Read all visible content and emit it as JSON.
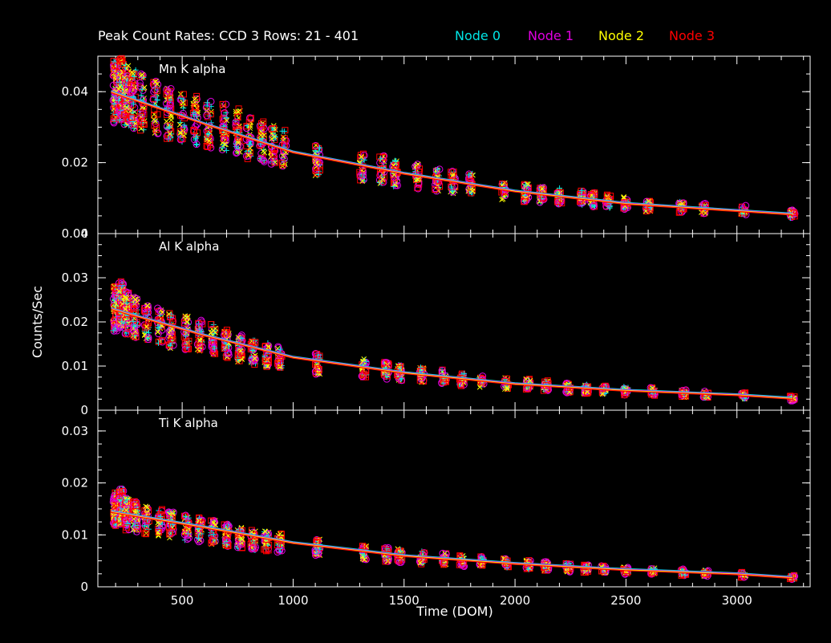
{
  "chart_data": {
    "type": "scatter",
    "title": "Peak Count Rates: CCD 3 Rows: 21 - 401",
    "xlabel": "Time (DOM)",
    "ylabel": "Counts/Sec",
    "xlim": [
      120,
      3330
    ],
    "x_ticks": [
      500,
      1000,
      1500,
      2000,
      2500,
      3000
    ],
    "series": [
      {
        "name": "Node 0",
        "color": "#00e5e5",
        "marker": "plus"
      },
      {
        "name": "Node 1",
        "color": "#e000e0",
        "marker": "circle"
      },
      {
        "name": "Node 2",
        "color": "#ffff00",
        "marker": "cross"
      },
      {
        "name": "Node 3",
        "color": "#ff0000",
        "marker": "square"
      }
    ],
    "panels": [
      {
        "title": "Mn K alpha",
        "ylim": [
          0,
          0.05
        ],
        "y_ticks": [
          0,
          0.02,
          0.04
        ],
        "y_tick_labels": [
          "0",
          "0.02",
          "0.04"
        ],
        "trend": [
          [
            180,
            0.04
          ],
          [
            600,
            0.031
          ],
          [
            1000,
            0.023
          ],
          [
            1500,
            0.017
          ],
          [
            2000,
            0.012
          ],
          [
            2500,
            0.0085
          ],
          [
            3000,
            0.0065
          ],
          [
            3250,
            0.0055
          ]
        ],
        "clusters": [
          {
            "x": 200,
            "y": 0.04,
            "n": 22
          },
          {
            "x": 225,
            "y": 0.041,
            "n": 22
          },
          {
            "x": 250,
            "y": 0.039,
            "n": 22
          },
          {
            "x": 280,
            "y": 0.038,
            "n": 16
          },
          {
            "x": 320,
            "y": 0.037,
            "n": 12
          },
          {
            "x": 380,
            "y": 0.036,
            "n": 10
          },
          {
            "x": 440,
            "y": 0.034,
            "n": 14
          },
          {
            "x": 500,
            "y": 0.033,
            "n": 10
          },
          {
            "x": 560,
            "y": 0.032,
            "n": 10
          },
          {
            "x": 620,
            "y": 0.031,
            "n": 10
          },
          {
            "x": 690,
            "y": 0.03,
            "n": 12
          },
          {
            "x": 750,
            "y": 0.029,
            "n": 12
          },
          {
            "x": 800,
            "y": 0.027,
            "n": 10
          },
          {
            "x": 860,
            "y": 0.026,
            "n": 12
          },
          {
            "x": 910,
            "y": 0.025,
            "n": 10
          },
          {
            "x": 960,
            "y": 0.024,
            "n": 8
          },
          {
            "x": 1110,
            "y": 0.021,
            "n": 10
          },
          {
            "x": 1310,
            "y": 0.019,
            "n": 8
          },
          {
            "x": 1400,
            "y": 0.018,
            "n": 10
          },
          {
            "x": 1460,
            "y": 0.017,
            "n": 10
          },
          {
            "x": 1560,
            "y": 0.016,
            "n": 8
          },
          {
            "x": 1650,
            "y": 0.015,
            "n": 8
          },
          {
            "x": 1720,
            "y": 0.0145,
            "n": 8
          },
          {
            "x": 1800,
            "y": 0.014,
            "n": 8
          },
          {
            "x": 1950,
            "y": 0.012,
            "n": 6
          },
          {
            "x": 2050,
            "y": 0.0115,
            "n": 10
          },
          {
            "x": 2120,
            "y": 0.011,
            "n": 10
          },
          {
            "x": 2200,
            "y": 0.0105,
            "n": 8
          },
          {
            "x": 2300,
            "y": 0.01,
            "n": 10
          },
          {
            "x": 2350,
            "y": 0.0095,
            "n": 10
          },
          {
            "x": 2420,
            "y": 0.009,
            "n": 8
          },
          {
            "x": 2500,
            "y": 0.0085,
            "n": 8
          },
          {
            "x": 2600,
            "y": 0.008,
            "n": 8
          },
          {
            "x": 2750,
            "y": 0.0075,
            "n": 8
          },
          {
            "x": 2850,
            "y": 0.007,
            "n": 6
          },
          {
            "x": 3030,
            "y": 0.0065,
            "n": 6
          },
          {
            "x": 3250,
            "y": 0.0055,
            "n": 8
          }
        ]
      },
      {
        "title": "Al K alpha",
        "ylim": [
          0,
          0.04
        ],
        "y_ticks": [
          0,
          0.01,
          0.02,
          0.03,
          0.04
        ],
        "y_tick_labels": [
          "0",
          "0.01",
          "0.02",
          "0.03",
          "0.04"
        ],
        "trend": [
          [
            180,
            0.023
          ],
          [
            600,
            0.017
          ],
          [
            1000,
            0.012
          ],
          [
            1500,
            0.0085
          ],
          [
            2000,
            0.006
          ],
          [
            2500,
            0.0045
          ],
          [
            3000,
            0.0035
          ],
          [
            3250,
            0.0027
          ]
        ],
        "clusters": [
          {
            "x": 200,
            "y": 0.023,
            "n": 22
          },
          {
            "x": 225,
            "y": 0.024,
            "n": 22
          },
          {
            "x": 250,
            "y": 0.022,
            "n": 20
          },
          {
            "x": 290,
            "y": 0.021,
            "n": 14
          },
          {
            "x": 340,
            "y": 0.02,
            "n": 10
          },
          {
            "x": 400,
            "y": 0.019,
            "n": 10
          },
          {
            "x": 450,
            "y": 0.018,
            "n": 12
          },
          {
            "x": 520,
            "y": 0.0175,
            "n": 10
          },
          {
            "x": 580,
            "y": 0.017,
            "n": 10
          },
          {
            "x": 640,
            "y": 0.016,
            "n": 10
          },
          {
            "x": 700,
            "y": 0.015,
            "n": 12
          },
          {
            "x": 760,
            "y": 0.014,
            "n": 12
          },
          {
            "x": 820,
            "y": 0.013,
            "n": 10
          },
          {
            "x": 880,
            "y": 0.0125,
            "n": 10
          },
          {
            "x": 940,
            "y": 0.012,
            "n": 8
          },
          {
            "x": 1110,
            "y": 0.0105,
            "n": 10
          },
          {
            "x": 1320,
            "y": 0.0095,
            "n": 8
          },
          {
            "x": 1420,
            "y": 0.009,
            "n": 10
          },
          {
            "x": 1480,
            "y": 0.0085,
            "n": 10
          },
          {
            "x": 1580,
            "y": 0.008,
            "n": 8
          },
          {
            "x": 1680,
            "y": 0.0075,
            "n": 8
          },
          {
            "x": 1760,
            "y": 0.007,
            "n": 8
          },
          {
            "x": 1850,
            "y": 0.0065,
            "n": 6
          },
          {
            "x": 1960,
            "y": 0.006,
            "n": 6
          },
          {
            "x": 2060,
            "y": 0.0058,
            "n": 10
          },
          {
            "x": 2140,
            "y": 0.0055,
            "n": 10
          },
          {
            "x": 2240,
            "y": 0.005,
            "n": 8
          },
          {
            "x": 2320,
            "y": 0.0048,
            "n": 10
          },
          {
            "x": 2400,
            "y": 0.0046,
            "n": 8
          },
          {
            "x": 2500,
            "y": 0.0044,
            "n": 8
          },
          {
            "x": 2620,
            "y": 0.0042,
            "n": 8
          },
          {
            "x": 2760,
            "y": 0.0038,
            "n": 8
          },
          {
            "x": 2860,
            "y": 0.0036,
            "n": 6
          },
          {
            "x": 3030,
            "y": 0.0033,
            "n": 6
          },
          {
            "x": 3250,
            "y": 0.0027,
            "n": 8
          }
        ]
      },
      {
        "title": "Ti K alpha",
        "ylim": [
          0,
          0.034
        ],
        "y_ticks": [
          0,
          0.01,
          0.02,
          0.03
        ],
        "y_tick_labels": [
          "0",
          "0.01",
          "0.02",
          "0.03"
        ],
        "trend": [
          [
            180,
            0.0145
          ],
          [
            600,
            0.0115
          ],
          [
            1000,
            0.0085
          ],
          [
            1500,
            0.006
          ],
          [
            2000,
            0.0045
          ],
          [
            2500,
            0.0033
          ],
          [
            3000,
            0.0025
          ],
          [
            3250,
            0.0018
          ]
        ],
        "clusters": [
          {
            "x": 200,
            "y": 0.015,
            "n": 22
          },
          {
            "x": 225,
            "y": 0.0155,
            "n": 22
          },
          {
            "x": 250,
            "y": 0.014,
            "n": 20
          },
          {
            "x": 290,
            "y": 0.0135,
            "n": 14
          },
          {
            "x": 340,
            "y": 0.013,
            "n": 10
          },
          {
            "x": 400,
            "y": 0.0125,
            "n": 10
          },
          {
            "x": 450,
            "y": 0.012,
            "n": 12
          },
          {
            "x": 520,
            "y": 0.0115,
            "n": 10
          },
          {
            "x": 580,
            "y": 0.011,
            "n": 10
          },
          {
            "x": 640,
            "y": 0.0105,
            "n": 10
          },
          {
            "x": 700,
            "y": 0.01,
            "n": 12
          },
          {
            "x": 760,
            "y": 0.0095,
            "n": 12
          },
          {
            "x": 820,
            "y": 0.009,
            "n": 10
          },
          {
            "x": 880,
            "y": 0.0088,
            "n": 10
          },
          {
            "x": 940,
            "y": 0.0085,
            "n": 8
          },
          {
            "x": 1110,
            "y": 0.0075,
            "n": 10
          },
          {
            "x": 1320,
            "y": 0.0065,
            "n": 8
          },
          {
            "x": 1420,
            "y": 0.0062,
            "n": 10
          },
          {
            "x": 1480,
            "y": 0.006,
            "n": 10
          },
          {
            "x": 1580,
            "y": 0.0056,
            "n": 8
          },
          {
            "x": 1680,
            "y": 0.0053,
            "n": 8
          },
          {
            "x": 1760,
            "y": 0.005,
            "n": 8
          },
          {
            "x": 1850,
            "y": 0.0048,
            "n": 6
          },
          {
            "x": 1960,
            "y": 0.0045,
            "n": 6
          },
          {
            "x": 2060,
            "y": 0.0042,
            "n": 10
          },
          {
            "x": 2140,
            "y": 0.004,
            "n": 10
          },
          {
            "x": 2240,
            "y": 0.0037,
            "n": 8
          },
          {
            "x": 2320,
            "y": 0.0035,
            "n": 10
          },
          {
            "x": 2400,
            "y": 0.0033,
            "n": 8
          },
          {
            "x": 2500,
            "y": 0.0031,
            "n": 8
          },
          {
            "x": 2620,
            "y": 0.003,
            "n": 8
          },
          {
            "x": 2760,
            "y": 0.0028,
            "n": 8
          },
          {
            "x": 2860,
            "y": 0.0026,
            "n": 6
          },
          {
            "x": 3030,
            "y": 0.0023,
            "n": 6
          },
          {
            "x": 3250,
            "y": 0.0018,
            "n": 8
          }
        ]
      }
    ]
  }
}
